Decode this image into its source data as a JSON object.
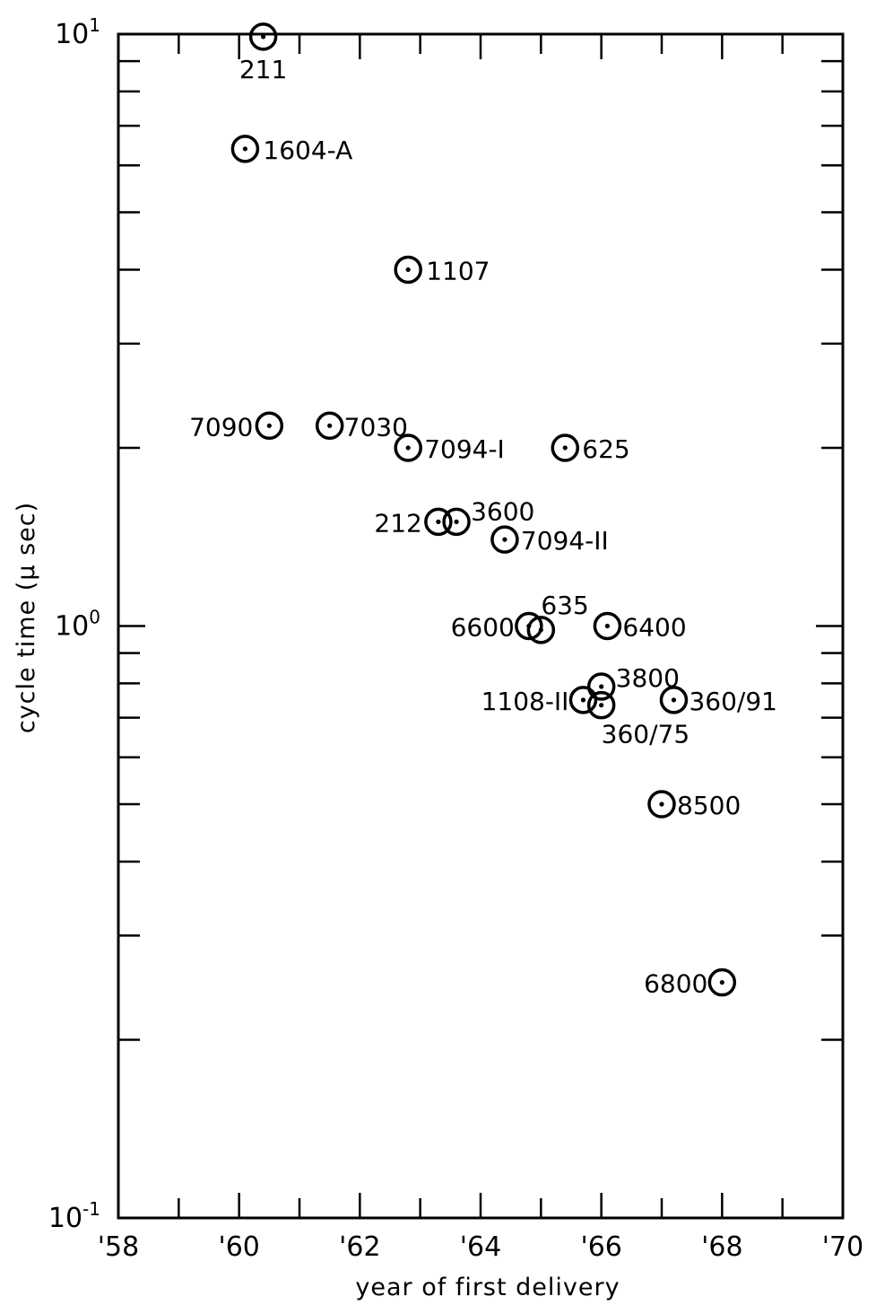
{
  "chart_data": {
    "type": "scatter",
    "title": "",
    "xlabel": "year of first delivery",
    "ylabel": "cycle time (μ sec)",
    "x_scale": "linear",
    "y_scale": "log",
    "xlim": [
      1958,
      1970
    ],
    "ylim": [
      0.1,
      10
    ],
    "grid": false,
    "x_ticks": [
      {
        "value": 1958,
        "label": "'58"
      },
      {
        "value": 1960,
        "label": "'60"
      },
      {
        "value": 1962,
        "label": "'62"
      },
      {
        "value": 1964,
        "label": "'64"
      },
      {
        "value": 1966,
        "label": "'66"
      },
      {
        "value": 1968,
        "label": "'68"
      },
      {
        "value": 1970,
        "label": "'70"
      }
    ],
    "y_ticks": [
      {
        "value": 10,
        "label": "10",
        "exp": "1"
      },
      {
        "value": 1,
        "label": "10",
        "exp": "0"
      },
      {
        "value": 0.1,
        "label": "10",
        "exp": "-1"
      }
    ],
    "points": [
      {
        "label": "211",
        "x": 1960.4,
        "y": 9.9
      },
      {
        "label": "1604-A",
        "x": 1960.1,
        "y": 6.4
      },
      {
        "label": "1107",
        "x": 1962.8,
        "y": 4.0
      },
      {
        "label": "7090",
        "x": 1960.5,
        "y": 2.18
      },
      {
        "label": "7030",
        "x": 1961.5,
        "y": 2.18
      },
      {
        "label": "7094-I",
        "x": 1962.8,
        "y": 2.0
      },
      {
        "label": "625",
        "x": 1965.4,
        "y": 2.0
      },
      {
        "label": "212",
        "x": 1963.3,
        "y": 1.5
      },
      {
        "label": "3600",
        "x": 1963.6,
        "y": 1.5
      },
      {
        "label": "7094-II",
        "x": 1964.4,
        "y": 1.4
      },
      {
        "label": "6600",
        "x": 1964.8,
        "y": 1.0
      },
      {
        "label": "635",
        "x": 1965.0,
        "y": 0.985
      },
      {
        "label": "6400",
        "x": 1966.1,
        "y": 1.0
      },
      {
        "label": "3800",
        "x": 1966.0,
        "y": 0.79
      },
      {
        "label": "1108-II",
        "x": 1965.7,
        "y": 0.75
      },
      {
        "label": "360/75",
        "x": 1966.0,
        "y": 0.735
      },
      {
        "label": "360/91",
        "x": 1967.2,
        "y": 0.75
      },
      {
        "label": "8500",
        "x": 1967.0,
        "y": 0.5
      },
      {
        "label": "6800",
        "x": 1968.0,
        "y": 0.25
      }
    ]
  }
}
